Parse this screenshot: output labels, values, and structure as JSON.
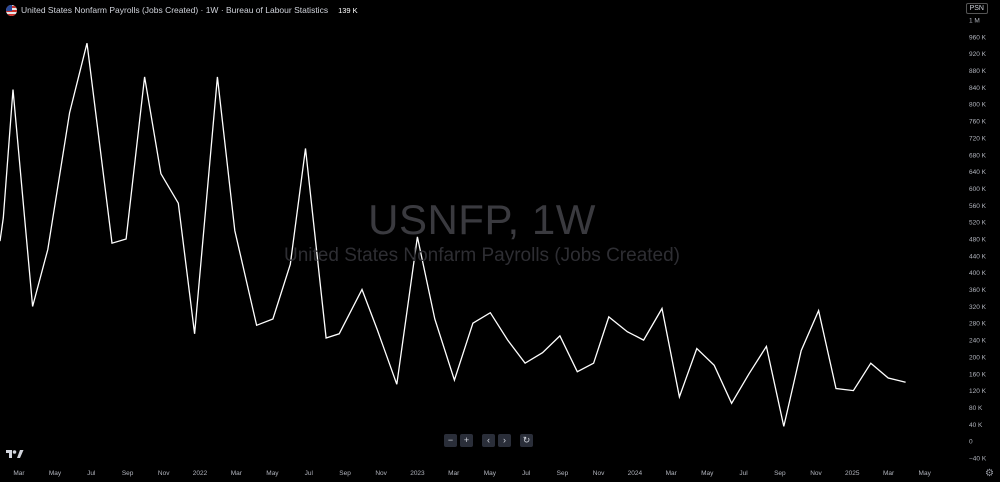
{
  "header": {
    "title": "United States Nonfarm Payrolls (Jobs Created) · 1W · Bureau of Labour Statistics",
    "value": "139 K"
  },
  "ticker_badge": "PSN",
  "watermark": {
    "symbol": "USNFP, 1W",
    "description": "United States Nonfarm Payrolls (Jobs Created)"
  },
  "controls": {
    "zoom_out": "−",
    "zoom_in": "+",
    "scroll_left": "‹",
    "scroll_right": "›",
    "reset": "↻"
  },
  "colors": {
    "background": "#000000",
    "line": "#ffffff",
    "axis_text": "#b2b5be"
  },
  "icons": [
    "us-flag-icon",
    "tradingview-logo-icon",
    "settings-gear-icon",
    "reset-icon"
  ],
  "chart_data": {
    "type": "line",
    "title": "United States Nonfarm Payrolls (Jobs Created)",
    "ylim": [
      -40,
      1000
    ],
    "y_ticks": [
      {
        "value": 1000,
        "label": "1 M"
      },
      {
        "value": 960,
        "label": "960 K"
      },
      {
        "value": 920,
        "label": "920 K"
      },
      {
        "value": 880,
        "label": "880 K"
      },
      {
        "value": 840,
        "label": "840 K"
      },
      {
        "value": 800,
        "label": "800 K"
      },
      {
        "value": 760,
        "label": "760 K"
      },
      {
        "value": 720,
        "label": "720 K"
      },
      {
        "value": 680,
        "label": "680 K"
      },
      {
        "value": 640,
        "label": "640 K"
      },
      {
        "value": 600,
        "label": "600 K"
      },
      {
        "value": 560,
        "label": "560 K"
      },
      {
        "value": 520,
        "label": "520 K"
      },
      {
        "value": 480,
        "label": "480 K"
      },
      {
        "value": 440,
        "label": "440 K"
      },
      {
        "value": 400,
        "label": "400 K"
      },
      {
        "value": 360,
        "label": "360 K"
      },
      {
        "value": 320,
        "label": "320 K"
      },
      {
        "value": 280,
        "label": "280 K"
      },
      {
        "value": 240,
        "label": "240 K"
      },
      {
        "value": 200,
        "label": "200 K"
      },
      {
        "value": 160,
        "label": "160 K"
      },
      {
        "value": 120,
        "label": "120 K"
      },
      {
        "value": 80,
        "label": "80 K"
      },
      {
        "value": 40,
        "label": "40 K"
      },
      {
        "value": 0,
        "label": "0"
      },
      {
        "value": -40,
        "label": "−40 K"
      }
    ],
    "xlim": [
      2021.08,
      2025.5
    ],
    "x_ticks": [
      {
        "value": 2021.167,
        "label": "Mar"
      },
      {
        "value": 2021.333,
        "label": "May"
      },
      {
        "value": 2021.5,
        "label": "Jul"
      },
      {
        "value": 2021.667,
        "label": "Sep"
      },
      {
        "value": 2021.833,
        "label": "Nov"
      },
      {
        "value": 2022.0,
        "label": "2022"
      },
      {
        "value": 2022.167,
        "label": "Mar"
      },
      {
        "value": 2022.333,
        "label": "May"
      },
      {
        "value": 2022.5,
        "label": "Jul"
      },
      {
        "value": 2022.667,
        "label": "Sep"
      },
      {
        "value": 2022.833,
        "label": "Nov"
      },
      {
        "value": 2023.0,
        "label": "2023"
      },
      {
        "value": 2023.167,
        "label": "Mar"
      },
      {
        "value": 2023.333,
        "label": "May"
      },
      {
        "value": 2023.5,
        "label": "Jul"
      },
      {
        "value": 2023.667,
        "label": "Sep"
      },
      {
        "value": 2023.833,
        "label": "Nov"
      },
      {
        "value": 2024.0,
        "label": "2024"
      },
      {
        "value": 2024.167,
        "label": "Mar"
      },
      {
        "value": 2024.333,
        "label": "May"
      },
      {
        "value": 2024.5,
        "label": "Jul"
      },
      {
        "value": 2024.667,
        "label": "Sep"
      },
      {
        "value": 2024.833,
        "label": "Nov"
      },
      {
        "value": 2025.0,
        "label": "2025"
      },
      {
        "value": 2025.167,
        "label": "Mar"
      },
      {
        "value": 2025.333,
        "label": "May"
      }
    ],
    "grid": false,
    "series": [
      {
        "values": [
          {
            "x": 2021.08,
            "y": 475
          },
          {
            "x": 2021.095,
            "y": 530
          },
          {
            "x": 2021.14,
            "y": 835
          },
          {
            "x": 2021.23,
            "y": 320
          },
          {
            "x": 2021.3,
            "y": 455
          },
          {
            "x": 2021.4,
            "y": 780
          },
          {
            "x": 2021.48,
            "y": 945
          },
          {
            "x": 2021.595,
            "y": 470
          },
          {
            "x": 2021.66,
            "y": 480
          },
          {
            "x": 2021.745,
            "y": 865
          },
          {
            "x": 2021.82,
            "y": 635
          },
          {
            "x": 2021.9,
            "y": 565
          },
          {
            "x": 2021.975,
            "y": 255
          },
          {
            "x": 2022.08,
            "y": 865
          },
          {
            "x": 2022.16,
            "y": 500
          },
          {
            "x": 2022.26,
            "y": 275
          },
          {
            "x": 2022.335,
            "y": 290
          },
          {
            "x": 2022.415,
            "y": 420
          },
          {
            "x": 2022.485,
            "y": 695
          },
          {
            "x": 2022.58,
            "y": 245
          },
          {
            "x": 2022.64,
            "y": 255
          },
          {
            "x": 2022.745,
            "y": 360
          },
          {
            "x": 2022.815,
            "y": 265
          },
          {
            "x": 2022.905,
            "y": 135
          },
          {
            "x": 2023.0,
            "y": 485
          },
          {
            "x": 2023.08,
            "y": 290
          },
          {
            "x": 2023.17,
            "y": 145
          },
          {
            "x": 2023.255,
            "y": 280
          },
          {
            "x": 2023.335,
            "y": 305
          },
          {
            "x": 2023.415,
            "y": 240
          },
          {
            "x": 2023.495,
            "y": 185
          },
          {
            "x": 2023.575,
            "y": 210
          },
          {
            "x": 2023.655,
            "y": 250
          },
          {
            "x": 2023.735,
            "y": 165
          },
          {
            "x": 2023.81,
            "y": 185
          },
          {
            "x": 2023.88,
            "y": 295
          },
          {
            "x": 2023.965,
            "y": 260
          },
          {
            "x": 2024.04,
            "y": 240
          },
          {
            "x": 2024.125,
            "y": 315
          },
          {
            "x": 2024.205,
            "y": 105
          },
          {
            "x": 2024.285,
            "y": 220
          },
          {
            "x": 2024.365,
            "y": 180
          },
          {
            "x": 2024.445,
            "y": 90
          },
          {
            "x": 2024.525,
            "y": 160
          },
          {
            "x": 2024.605,
            "y": 225
          },
          {
            "x": 2024.685,
            "y": 35
          },
          {
            "x": 2024.765,
            "y": 215
          },
          {
            "x": 2024.845,
            "y": 310
          },
          {
            "x": 2024.925,
            "y": 125
          },
          {
            "x": 2025.005,
            "y": 120
          },
          {
            "x": 2025.085,
            "y": 185
          },
          {
            "x": 2025.165,
            "y": 150
          },
          {
            "x": 2025.245,
            "y": 140
          }
        ]
      }
    ]
  }
}
